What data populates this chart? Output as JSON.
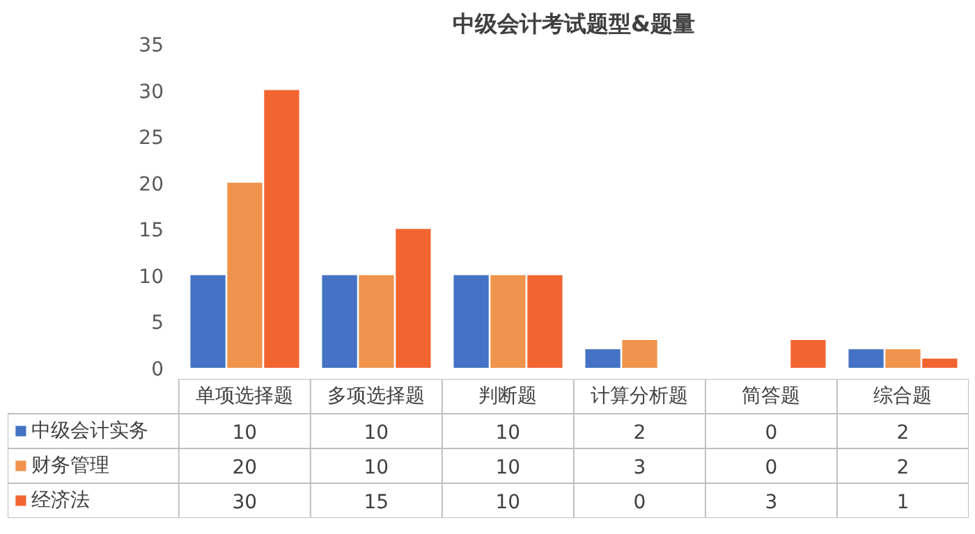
{
  "chart_data": {
    "type": "bar",
    "title": "中级会计考试题型&题量",
    "categories": [
      "单项选择题",
      "多项选择题",
      "判断题",
      "计算分析题",
      "简答题",
      "综合题"
    ],
    "series": [
      {
        "name": "中级会计实务",
        "color": "#4472c4",
        "values": [
          10,
          10,
          10,
          2,
          0,
          2
        ]
      },
      {
        "name": "财务管理",
        "color": "#f0934c",
        "values": [
          20,
          10,
          10,
          3,
          0,
          2
        ]
      },
      {
        "name": "经济法",
        "color": "#f26530",
        "values": [
          30,
          15,
          10,
          0,
          3,
          1
        ]
      }
    ],
    "ylim": [
      0,
      35
    ],
    "yticks": [
      0,
      5,
      10,
      15,
      20,
      25,
      30,
      35
    ],
    "data_labels": true,
    "legend": "bottom left"
  }
}
